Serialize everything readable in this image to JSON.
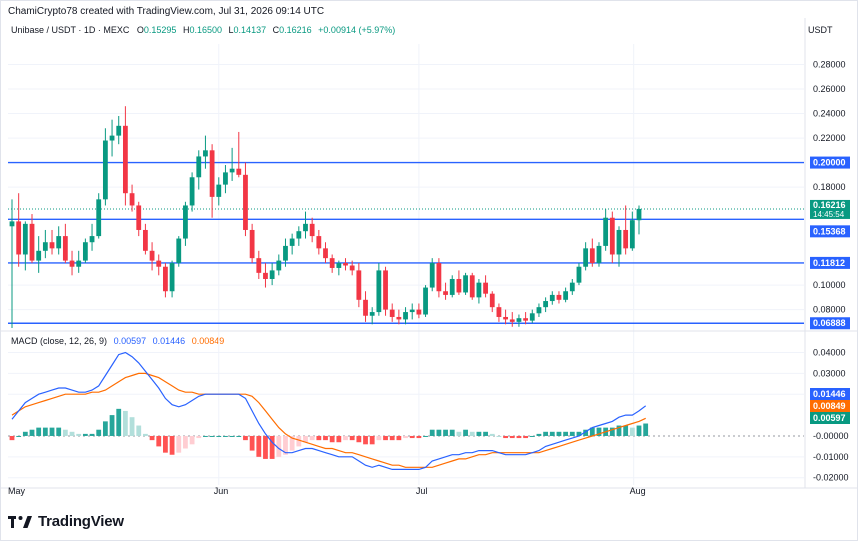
{
  "header": {
    "attribution": "ChamiCrypto78 created with TradingView.com, Jul 31, 2026 09:14 UTC",
    "symbol": "Unibase / USDT · 1D · MEXC",
    "o_label": "O",
    "o_value": "0.15295",
    "h_label": "H",
    "h_value": "0.16500",
    "l_label": "L",
    "l_value": "0.14137",
    "c_label": "C",
    "c_value": "0.16216",
    "change": "+0.00914 (+5.97%)",
    "currency": "USDT"
  },
  "macd_legend": {
    "title": "MACD (close, 12, 26, 9)",
    "v1": "0.00597",
    "v2": "0.01446",
    "v3": "0.00849"
  },
  "logo_text": "TradingView",
  "colors": {
    "up": "#089981",
    "down": "#f23645",
    "level_line": "#2962ff",
    "macd_line": "#2962ff",
    "signal_line": "#ff6d00",
    "hist_up_strong": "#26a69a",
    "hist_up_weak": "#b2dfdb",
    "hist_down_strong": "#ff5252",
    "hist_down_weak": "#ffcdd2",
    "grid": "#f0f3fa",
    "text": "#131722"
  },
  "chart_data": [
    {
      "type": "candlestick",
      "title": "Unibase / USDT · 1D · MEXC",
      "ylim": [
        0.065,
        0.2935
      ],
      "y_ticks": [
        "0.28000",
        "0.26000",
        "0.24000",
        "0.22000",
        "0.20000",
        "0.18000",
        "0.16216",
        "0.15368",
        "0.11812",
        "0.10000",
        "0.08000",
        "0.06888"
      ],
      "price_tags": [
        {
          "value": 0.2,
          "label": "0.20000",
          "style": "level"
        },
        {
          "value": 0.16216,
          "label": "0.16216",
          "sublabel": "14:45:54",
          "style": "last"
        },
        {
          "value": 0.15368,
          "label": "0.15368",
          "style": "level"
        },
        {
          "value": 0.11812,
          "label": "0.11812",
          "style": "level"
        },
        {
          "value": 0.06888,
          "label": "0.06888",
          "style": "level"
        }
      ],
      "horizontal_levels": [
        0.2,
        0.15368,
        0.11812,
        0.06888
      ],
      "x_labels": [
        "May",
        "Jun",
        "Jul",
        "Aug"
      ],
      "grid": true,
      "candles": [
        {
          "o": 0.148,
          "h": 0.17,
          "l": 0.065,
          "c": 0.152
        },
        {
          "o": 0.152,
          "h": 0.175,
          "l": 0.115,
          "c": 0.125
        },
        {
          "o": 0.125,
          "h": 0.152,
          "l": 0.112,
          "c": 0.15
        },
        {
          "o": 0.15,
          "h": 0.158,
          "l": 0.118,
          "c": 0.12
        },
        {
          "o": 0.12,
          "h": 0.14,
          "l": 0.11,
          "c": 0.128
        },
        {
          "o": 0.128,
          "h": 0.145,
          "l": 0.122,
          "c": 0.135
        },
        {
          "o": 0.135,
          "h": 0.145,
          "l": 0.125,
          "c": 0.13
        },
        {
          "o": 0.13,
          "h": 0.148,
          "l": 0.125,
          "c": 0.14
        },
        {
          "o": 0.14,
          "h": 0.15,
          "l": 0.118,
          "c": 0.12
        },
        {
          "o": 0.12,
          "h": 0.128,
          "l": 0.108,
          "c": 0.115
        },
        {
          "o": 0.115,
          "h": 0.128,
          "l": 0.11,
          "c": 0.12
        },
        {
          "o": 0.12,
          "h": 0.138,
          "l": 0.118,
          "c": 0.135
        },
        {
          "o": 0.135,
          "h": 0.15,
          "l": 0.128,
          "c": 0.14
        },
        {
          "o": 0.14,
          "h": 0.175,
          "l": 0.138,
          "c": 0.17
        },
        {
          "o": 0.17,
          "h": 0.228,
          "l": 0.165,
          "c": 0.218
        },
        {
          "o": 0.218,
          "h": 0.235,
          "l": 0.205,
          "c": 0.222
        },
        {
          "o": 0.222,
          "h": 0.238,
          "l": 0.215,
          "c": 0.23
        },
        {
          "o": 0.23,
          "h": 0.246,
          "l": 0.165,
          "c": 0.175
        },
        {
          "o": 0.175,
          "h": 0.182,
          "l": 0.16,
          "c": 0.165
        },
        {
          "o": 0.165,
          "h": 0.168,
          "l": 0.14,
          "c": 0.145
        },
        {
          "o": 0.145,
          "h": 0.15,
          "l": 0.125,
          "c": 0.128
        },
        {
          "o": 0.128,
          "h": 0.135,
          "l": 0.112,
          "c": 0.12
        },
        {
          "o": 0.12,
          "h": 0.125,
          "l": 0.108,
          "c": 0.115
        },
        {
          "o": 0.115,
          "h": 0.118,
          "l": 0.09,
          "c": 0.095
        },
        {
          "o": 0.095,
          "h": 0.12,
          "l": 0.09,
          "c": 0.118
        },
        {
          "o": 0.118,
          "h": 0.14,
          "l": 0.115,
          "c": 0.138
        },
        {
          "o": 0.138,
          "h": 0.168,
          "l": 0.132,
          "c": 0.165
        },
        {
          "o": 0.165,
          "h": 0.192,
          "l": 0.16,
          "c": 0.188
        },
        {
          "o": 0.188,
          "h": 0.21,
          "l": 0.178,
          "c": 0.205
        },
        {
          "o": 0.205,
          "h": 0.222,
          "l": 0.195,
          "c": 0.21
        },
        {
          "o": 0.21,
          "h": 0.215,
          "l": 0.155,
          "c": 0.172
        },
        {
          "o": 0.172,
          "h": 0.188,
          "l": 0.165,
          "c": 0.182
        },
        {
          "o": 0.182,
          "h": 0.198,
          "l": 0.175,
          "c": 0.192
        },
        {
          "o": 0.192,
          "h": 0.212,
          "l": 0.185,
          "c": 0.195
        },
        {
          "o": 0.195,
          "h": 0.225,
          "l": 0.188,
          "c": 0.19
        },
        {
          "o": 0.19,
          "h": 0.2,
          "l": 0.14,
          "c": 0.145
        },
        {
          "o": 0.145,
          "h": 0.15,
          "l": 0.118,
          "c": 0.122
        },
        {
          "o": 0.122,
          "h": 0.128,
          "l": 0.105,
          "c": 0.11
        },
        {
          "o": 0.11,
          "h": 0.118,
          "l": 0.098,
          "c": 0.105
        },
        {
          "o": 0.105,
          "h": 0.118,
          "l": 0.1,
          "c": 0.112
        },
        {
          "o": 0.112,
          "h": 0.125,
          "l": 0.108,
          "c": 0.12
        },
        {
          "o": 0.12,
          "h": 0.138,
          "l": 0.115,
          "c": 0.132
        },
        {
          "o": 0.132,
          "h": 0.142,
          "l": 0.125,
          "c": 0.138
        },
        {
          "o": 0.138,
          "h": 0.148,
          "l": 0.132,
          "c": 0.144
        },
        {
          "o": 0.144,
          "h": 0.16,
          "l": 0.138,
          "c": 0.15
        },
        {
          "o": 0.15,
          "h": 0.155,
          "l": 0.135,
          "c": 0.14
        },
        {
          "o": 0.14,
          "h": 0.145,
          "l": 0.125,
          "c": 0.13
        },
        {
          "o": 0.13,
          "h": 0.135,
          "l": 0.118,
          "c": 0.122
        },
        {
          "o": 0.122,
          "h": 0.125,
          "l": 0.11,
          "c": 0.114
        },
        {
          "o": 0.114,
          "h": 0.12,
          "l": 0.108,
          "c": 0.118
        },
        {
          "o": 0.118,
          "h": 0.122,
          "l": 0.112,
          "c": 0.116
        },
        {
          "o": 0.116,
          "h": 0.12,
          "l": 0.108,
          "c": 0.112
        },
        {
          "o": 0.112,
          "h": 0.118,
          "l": 0.082,
          "c": 0.088
        },
        {
          "o": 0.088,
          "h": 0.095,
          "l": 0.07,
          "c": 0.075
        },
        {
          "o": 0.075,
          "h": 0.082,
          "l": 0.068,
          "c": 0.078
        },
        {
          "o": 0.078,
          "h": 0.118,
          "l": 0.075,
          "c": 0.112
        },
        {
          "o": 0.112,
          "h": 0.115,
          "l": 0.075,
          "c": 0.08
        },
        {
          "o": 0.08,
          "h": 0.085,
          "l": 0.07,
          "c": 0.074
        },
        {
          "o": 0.074,
          "h": 0.08,
          "l": 0.068,
          "c": 0.072
        },
        {
          "o": 0.072,
          "h": 0.082,
          "l": 0.068,
          "c": 0.078
        },
        {
          "o": 0.078,
          "h": 0.085,
          "l": 0.072,
          "c": 0.08
        },
        {
          "o": 0.08,
          "h": 0.085,
          "l": 0.073,
          "c": 0.076
        },
        {
          "o": 0.076,
          "h": 0.1,
          "l": 0.074,
          "c": 0.098
        },
        {
          "o": 0.098,
          "h": 0.122,
          "l": 0.095,
          "c": 0.118
        },
        {
          "o": 0.118,
          "h": 0.122,
          "l": 0.09,
          "c": 0.095
        },
        {
          "o": 0.095,
          "h": 0.102,
          "l": 0.088,
          "c": 0.092
        },
        {
          "o": 0.092,
          "h": 0.108,
          "l": 0.09,
          "c": 0.105
        },
        {
          "o": 0.105,
          "h": 0.112,
          "l": 0.092,
          "c": 0.094
        },
        {
          "o": 0.094,
          "h": 0.11,
          "l": 0.092,
          "c": 0.108
        },
        {
          "o": 0.108,
          "h": 0.11,
          "l": 0.088,
          "c": 0.09
        },
        {
          "o": 0.09,
          "h": 0.105,
          "l": 0.085,
          "c": 0.102
        },
        {
          "o": 0.102,
          "h": 0.108,
          "l": 0.09,
          "c": 0.093
        },
        {
          "o": 0.093,
          "h": 0.095,
          "l": 0.078,
          "c": 0.082
        },
        {
          "o": 0.082,
          "h": 0.085,
          "l": 0.07,
          "c": 0.074
        },
        {
          "o": 0.074,
          "h": 0.08,
          "l": 0.068,
          "c": 0.072
        },
        {
          "o": 0.072,
          "h": 0.078,
          "l": 0.066,
          "c": 0.07
        },
        {
          "o": 0.07,
          "h": 0.076,
          "l": 0.066,
          "c": 0.073
        },
        {
          "o": 0.073,
          "h": 0.078,
          "l": 0.068,
          "c": 0.071
        },
        {
          "o": 0.071,
          "h": 0.08,
          "l": 0.069,
          "c": 0.077
        },
        {
          "o": 0.077,
          "h": 0.085,
          "l": 0.074,
          "c": 0.082
        },
        {
          "o": 0.082,
          "h": 0.09,
          "l": 0.078,
          "c": 0.087
        },
        {
          "o": 0.087,
          "h": 0.095,
          "l": 0.084,
          "c": 0.092
        },
        {
          "o": 0.092,
          "h": 0.095,
          "l": 0.085,
          "c": 0.088
        },
        {
          "o": 0.088,
          "h": 0.098,
          "l": 0.086,
          "c": 0.095
        },
        {
          "o": 0.095,
          "h": 0.105,
          "l": 0.092,
          "c": 0.102
        },
        {
          "o": 0.102,
          "h": 0.118,
          "l": 0.1,
          "c": 0.115
        },
        {
          "o": 0.115,
          "h": 0.135,
          "l": 0.112,
          "c": 0.13
        },
        {
          "o": 0.13,
          "h": 0.138,
          "l": 0.115,
          "c": 0.118
        },
        {
          "o": 0.118,
          "h": 0.135,
          "l": 0.115,
          "c": 0.132
        },
        {
          "o": 0.132,
          "h": 0.162,
          "l": 0.128,
          "c": 0.155
        },
        {
          "o": 0.155,
          "h": 0.16,
          "l": 0.118,
          "c": 0.125
        },
        {
          "o": 0.125,
          "h": 0.148,
          "l": 0.115,
          "c": 0.145
        },
        {
          "o": 0.145,
          "h": 0.165,
          "l": 0.125,
          "c": 0.13
        },
        {
          "o": 0.13,
          "h": 0.16,
          "l": 0.128,
          "c": 0.153
        },
        {
          "o": 0.15295,
          "h": 0.165,
          "l": 0.14137,
          "c": 0.16216
        }
      ]
    },
    {
      "type": "line",
      "title": "MACD (close, 12, 26, 9)",
      "ylim": [
        -0.0235,
        0.046
      ],
      "y_ticks": [
        "0.04000",
        "0.03000",
        "0.02000",
        "0.01446",
        "0.00849",
        "0.00597",
        "-0.00000",
        "-0.01000",
        "-0.02000"
      ],
      "price_tags": [
        {
          "value": 0.01446,
          "label": "0.01446",
          "style": "macd"
        },
        {
          "value": 0.00849,
          "label": "0.00849",
          "style": "signal"
        },
        {
          "value": 0.00597,
          "label": "0.00597",
          "style": "hist"
        }
      ],
      "series": [
        {
          "name": "MACD",
          "values": [
            0.008,
            0.012,
            0.016,
            0.018,
            0.02,
            0.021,
            0.022,
            0.023,
            0.023,
            0.022,
            0.021,
            0.021,
            0.022,
            0.024,
            0.029,
            0.034,
            0.039,
            0.04,
            0.038,
            0.035,
            0.031,
            0.027,
            0.023,
            0.018,
            0.015,
            0.014,
            0.015,
            0.017,
            0.019,
            0.02,
            0.02,
            0.02,
            0.02,
            0.02,
            0.02,
            0.018,
            0.012,
            0.006,
            0.001,
            -0.003,
            -0.006,
            -0.008,
            -0.008,
            -0.007,
            -0.006,
            -0.006,
            -0.007,
            -0.008,
            -0.009,
            -0.01,
            -0.01,
            -0.01,
            -0.012,
            -0.014,
            -0.015,
            -0.014,
            -0.015,
            -0.016,
            -0.016,
            -0.016,
            -0.016,
            -0.016,
            -0.015,
            -0.012,
            -0.011,
            -0.01,
            -0.009,
            -0.009,
            -0.008,
            -0.008,
            -0.007,
            -0.007,
            -0.007,
            -0.008,
            -0.009,
            -0.009,
            -0.009,
            -0.009,
            -0.008,
            -0.007,
            -0.005,
            -0.004,
            -0.003,
            -0.002,
            -0.001,
            0.0,
            0.002,
            0.004,
            0.005,
            0.006,
            0.007,
            0.009,
            0.01,
            0.01,
            0.012,
            0.01446
          ]
        },
        {
          "name": "Signal",
          "values": [
            0.01,
            0.012,
            0.014,
            0.015,
            0.016,
            0.017,
            0.018,
            0.019,
            0.02,
            0.02,
            0.02,
            0.02,
            0.021,
            0.021,
            0.022,
            0.024,
            0.026,
            0.028,
            0.029,
            0.03,
            0.03,
            0.029,
            0.028,
            0.026,
            0.024,
            0.022,
            0.021,
            0.021,
            0.02,
            0.02,
            0.02,
            0.02,
            0.02,
            0.02,
            0.02,
            0.02,
            0.019,
            0.016,
            0.012,
            0.008,
            0.004,
            0.001,
            -0.001,
            -0.002,
            -0.003,
            -0.004,
            -0.005,
            -0.006,
            -0.006,
            -0.007,
            -0.008,
            -0.008,
            -0.009,
            -0.01,
            -0.011,
            -0.012,
            -0.013,
            -0.014,
            -0.014,
            -0.015,
            -0.015,
            -0.015,
            -0.015,
            -0.015,
            -0.014,
            -0.013,
            -0.012,
            -0.011,
            -0.011,
            -0.01,
            -0.009,
            -0.009,
            -0.008,
            -0.008,
            -0.008,
            -0.008,
            -0.008,
            -0.008,
            -0.008,
            -0.008,
            -0.007,
            -0.006,
            -0.005,
            -0.004,
            -0.003,
            -0.002,
            -0.001,
            0.0,
            0.001,
            0.002,
            0.003,
            0.004,
            0.005,
            0.006,
            0.007,
            0.00849
          ]
        },
        {
          "name": "Histogram",
          "values": [
            -0.002,
            0.0,
            0.002,
            0.003,
            0.004,
            0.004,
            0.004,
            0.004,
            0.003,
            0.002,
            0.001,
            0.001,
            0.001,
            0.003,
            0.007,
            0.01,
            0.013,
            0.012,
            0.009,
            0.005,
            0.001,
            -0.002,
            -0.005,
            -0.008,
            -0.009,
            -0.008,
            -0.006,
            -0.004,
            -0.001,
            0.0,
            0.0,
            0.0,
            0.0,
            0.0,
            0.0,
            -0.002,
            -0.007,
            -0.01,
            -0.011,
            -0.011,
            -0.01,
            -0.009,
            -0.007,
            -0.005,
            -0.003,
            -0.002,
            -0.002,
            -0.002,
            -0.003,
            -0.003,
            -0.002,
            -0.002,
            -0.003,
            -0.004,
            -0.004,
            -0.002,
            -0.002,
            -0.002,
            -0.002,
            -0.001,
            -0.001,
            -0.001,
            0.0,
            0.003,
            0.003,
            0.003,
            0.003,
            0.002,
            0.003,
            0.002,
            0.002,
            0.002,
            0.001,
            0.0,
            -0.001,
            -0.001,
            -0.001,
            -0.001,
            0.0,
            0.001,
            0.002,
            0.002,
            0.002,
            0.002,
            0.002,
            0.002,
            0.003,
            0.004,
            0.004,
            0.004,
            0.004,
            0.005,
            0.005,
            0.004,
            0.005,
            0.00597
          ]
        }
      ]
    }
  ]
}
